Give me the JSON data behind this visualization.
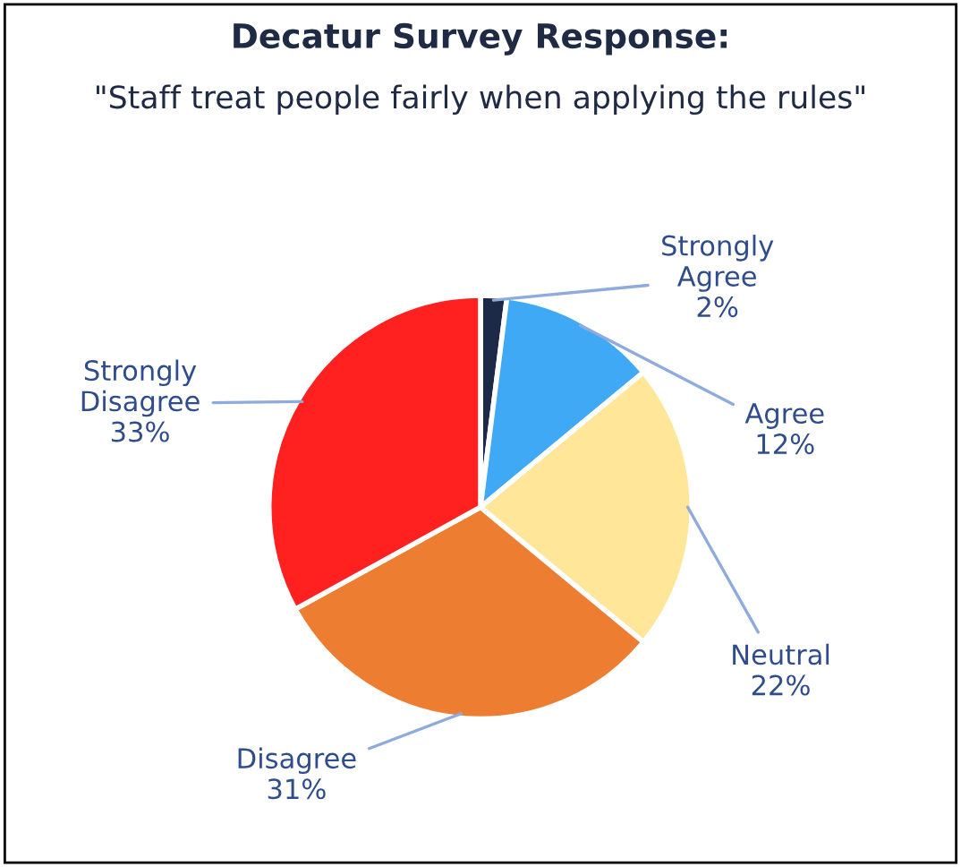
{
  "chart_data": {
    "type": "pie",
    "title": "Decatur Survey Response:",
    "subtitle": "\"Staff treat people fairly when applying the rules\"",
    "categories": [
      "Strongly Agree",
      "Agree",
      "Neutral",
      "Disagree",
      "Strongly Disagree"
    ],
    "values": [
      2,
      12,
      22,
      31,
      33
    ],
    "value_labels": [
      "2%",
      "12%",
      "22%",
      "31%",
      "33%"
    ],
    "colors": [
      "#1c2a48",
      "#3fa9f5",
      "#ffe699",
      "#ed7d31",
      "#ff2020"
    ]
  }
}
